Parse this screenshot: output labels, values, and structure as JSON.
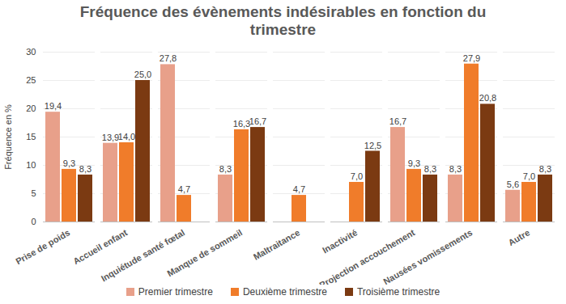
{
  "chart_data": {
    "type": "bar",
    "title": "Fréquence des évènements indésirables en fonction du trimestre",
    "ylabel": "Fréquence en %",
    "categories": [
      "Prise de poids",
      "Accueil enfant",
      "Inquiétude santé fœtal",
      "Manque de sommeil",
      "Maltraitance",
      "Inactivité",
      "Projection accouchement",
      "Nausées vomissements",
      "Autre"
    ],
    "series": [
      {
        "name": "Premier trimestre",
        "color": "#e8a08a",
        "values": [
          19.4,
          13.9,
          27.8,
          8.3,
          null,
          null,
          16.7,
          8.3,
          5.6
        ],
        "value_labels": [
          "19,4",
          "13,9",
          "27,8",
          "8,3",
          null,
          null,
          "16,7",
          "8,3",
          "5,6"
        ]
      },
      {
        "name": "Deuxième trimestre",
        "color": "#f07c2a",
        "values": [
          9.3,
          14.0,
          4.7,
          16.3,
          4.7,
          7.0,
          9.3,
          27.9,
          7.0
        ],
        "value_labels": [
          "9,3",
          "14,0",
          "4,7",
          "16,3",
          "4,7",
          "7,0",
          "9,3",
          "27,9",
          "7,0"
        ]
      },
      {
        "name": "Troisième trimestre",
        "color": "#7b3a12",
        "values": [
          8.3,
          25.0,
          null,
          16.7,
          null,
          12.5,
          8.3,
          20.8,
          8.3
        ],
        "value_labels": [
          "8,3",
          "25,0",
          null,
          "16,7",
          null,
          "12,5",
          "8,3",
          "20,8",
          "8,3"
        ]
      }
    ],
    "ylim": [
      0,
      30
    ],
    "yticks": [
      0,
      5,
      10,
      15,
      20,
      25,
      30
    ],
    "grid": true,
    "data_labels": true,
    "legend": "bottom"
  }
}
